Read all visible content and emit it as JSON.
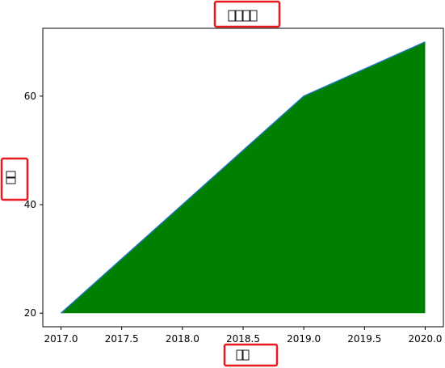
{
  "chart_data": {
    "type": "area",
    "title": "",
    "xlabel": "",
    "ylabel": "",
    "x": [
      2017.0,
      2018.0,
      2019.0,
      2020.0
    ],
    "y": [
      20,
      40,
      60,
      70
    ],
    "baseline": 20,
    "xlim": [
      2016.85,
      2020.15
    ],
    "ylim": [
      17.5,
      72.5
    ],
    "xticks": [
      2017.0,
      2017.5,
      2018.0,
      2018.5,
      2019.0,
      2019.5,
      2020.0
    ],
    "xtick_labels": [
      "2017.0",
      "2017.5",
      "2018.0",
      "2018.5",
      "2019.0",
      "2019.5",
      "2020.0"
    ],
    "yticks": [
      20,
      40,
      60
    ],
    "ytick_labels": [
      "20",
      "40",
      "60"
    ],
    "grid": false,
    "legend": "none",
    "colors": {
      "fill": "#008000",
      "line": "#1f77b4",
      "annotation_box": "#e8191f",
      "axes": "#000000"
    },
    "notes_on_text": "Title and axis labels render as missing-glyph boxes in the original; each is highlighted with a red rectangle."
  }
}
